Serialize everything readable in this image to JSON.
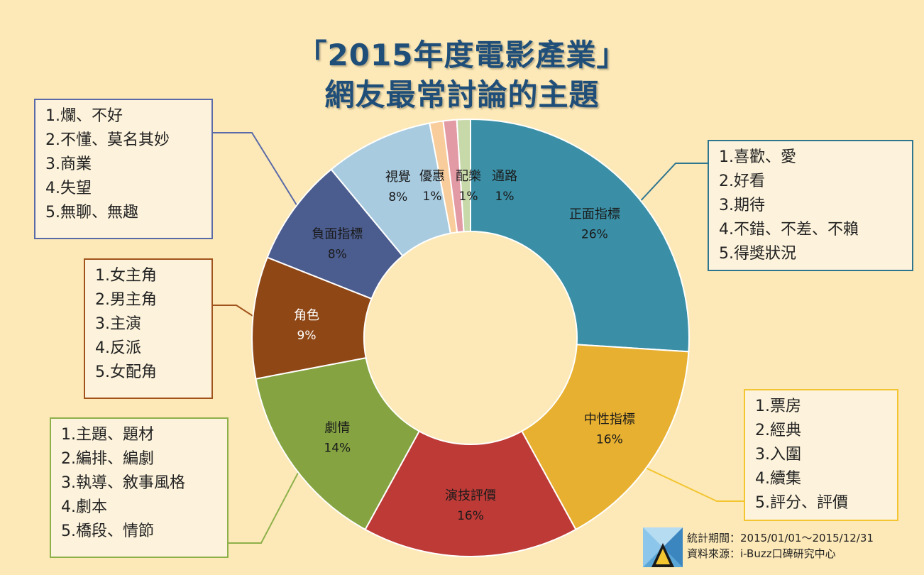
{
  "title_line1": "「2015年度電影產業」",
  "title_line2": "網友最常討論的主題",
  "chart_data": {
    "type": "pie",
    "donut": true,
    "categories": [
      "正面指標",
      "中性指標",
      "演技評價",
      "劇情",
      "角色",
      "負面指標",
      "視覺",
      "優惠",
      "配樂",
      "通路"
    ],
    "values": [
      26,
      16,
      16,
      14,
      9,
      8,
      8,
      1,
      1,
      1
    ],
    "value_labels": [
      "26%",
      "16%",
      "16%",
      "14%",
      "9%",
      "8%",
      "8%",
      "1%",
      "1%",
      "1%"
    ],
    "colors": [
      "#3a8fa6",
      "#e8b030",
      "#bd3a36",
      "#85a441",
      "#8f4715",
      "#4b5c8e",
      "#a8cbe0",
      "#f8cd9b",
      "#e29aa5",
      "#c7d8a9"
    ]
  },
  "callouts": {
    "positive": {
      "items": [
        "1.喜歡、愛",
        "2.好看",
        "3.期待",
        "4.不錯、不差、不賴",
        "5.得獎狀況"
      ],
      "color": "#2e7590"
    },
    "neutral": {
      "items": [
        "1.票房",
        "2.經典",
        "3.入圍",
        "4.續集",
        "5.評分、評價"
      ],
      "color": "#f2c531"
    },
    "plot": {
      "items": [
        "1.主題、題材",
        "2.編排、編劇",
        "3.執導、敘事風格",
        "4.劇本",
        "5.橋段、情節"
      ],
      "color": "#8db04a"
    },
    "role": {
      "items": [
        "1.女主角",
        "2.男主角",
        "3.主演",
        "4.反派",
        "5.女配角"
      ],
      "color": "#a0531c"
    },
    "negative": {
      "items": [
        "1.爛、不好",
        "2.不懂、莫名其妙",
        "3.商業",
        "4.失望",
        "5.無聊、無趣"
      ],
      "color": "#5a6aa8"
    }
  },
  "footer": {
    "period": "統計期間：2015/01/01～2015/12/31",
    "source": "資料來源：i-Buzz口碑研究中心"
  }
}
